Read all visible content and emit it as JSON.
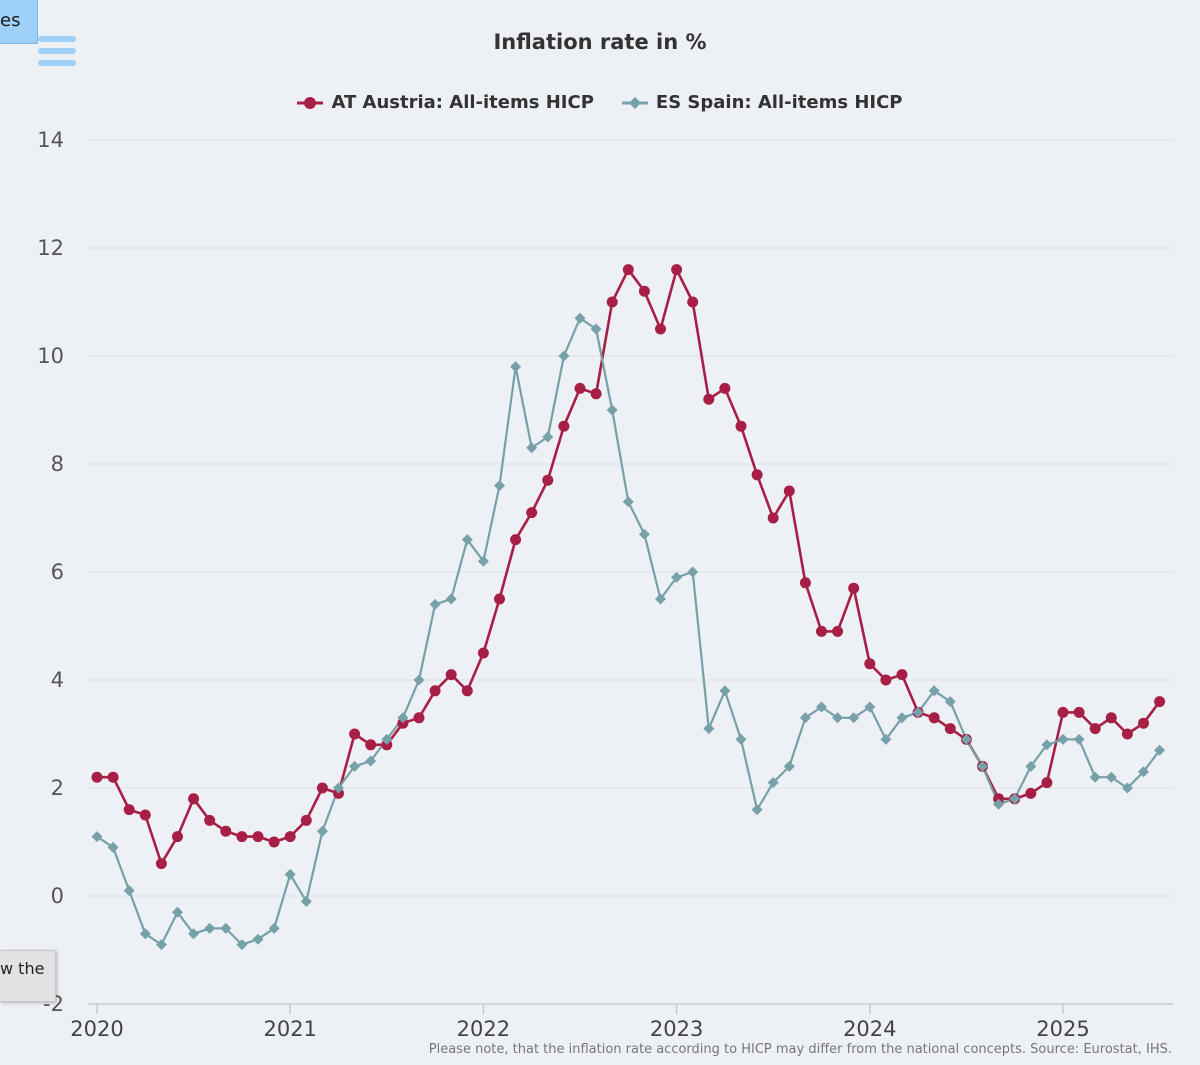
{
  "header": {
    "tab_label": "es",
    "menu_icon": "hamburger-menu-icon"
  },
  "side_tab": {
    "label": "w the"
  },
  "note": "Please note, that the inflation rate according to HICP may differ from the national concepts. Source: Eurostat, IHS.",
  "colors": {
    "austria": "#a81f45",
    "spain": "#76a1a8",
    "background": "#edf0f5",
    "grid": "#dde0e6"
  },
  "chart_data": {
    "type": "line",
    "title": "Inflation rate in %",
    "xlabel": "",
    "ylabel": "",
    "ylim": [
      -2,
      14
    ],
    "yticks": [
      "14",
      "12",
      "10",
      "8",
      "6",
      "4",
      "2",
      "0",
      "-2"
    ],
    "xticks": [
      "2020",
      "2021",
      "2022",
      "2023",
      "2024",
      "2025"
    ],
    "x_start": "2020-01",
    "x_end": "2025-07",
    "legend_position": "top-center",
    "grid": true,
    "series": [
      {
        "name": "AT Austria: All-items HICP",
        "marker": "circle",
        "values": [
          2.2,
          2.2,
          1.6,
          1.5,
          0.6,
          1.1,
          1.8,
          1.4,
          1.2,
          1.1,
          1.1,
          1.0,
          1.1,
          1.4,
          2.0,
          1.9,
          3.0,
          2.8,
          2.8,
          3.2,
          3.3,
          3.8,
          4.1,
          3.8,
          4.5,
          5.5,
          6.6,
          7.1,
          7.7,
          8.7,
          9.4,
          9.3,
          11.0,
          11.6,
          11.2,
          10.5,
          11.6,
          11.0,
          9.2,
          9.4,
          8.7,
          7.8,
          7.0,
          7.5,
          5.8,
          4.9,
          4.9,
          5.7,
          4.3,
          4.0,
          4.1,
          3.4,
          3.3,
          3.1,
          2.9,
          2.4,
          1.8,
          1.8,
          1.9,
          2.1,
          3.4,
          3.4,
          3.1,
          3.3,
          3.0,
          3.2,
          3.6
        ]
      },
      {
        "name": "ES Spain: All-items HICP",
        "marker": "diamond",
        "values": [
          1.1,
          0.9,
          0.1,
          -0.7,
          -0.9,
          -0.3,
          -0.7,
          -0.6,
          -0.6,
          -0.9,
          -0.8,
          -0.6,
          0.4,
          -0.1,
          1.2,
          2.0,
          2.4,
          2.5,
          2.9,
          3.3,
          4.0,
          5.4,
          5.5,
          6.6,
          6.2,
          7.6,
          9.8,
          8.3,
          8.5,
          10.0,
          10.7,
          10.5,
          9.0,
          7.3,
          6.7,
          5.5,
          5.9,
          6.0,
          3.1,
          3.8,
          2.9,
          1.6,
          2.1,
          2.4,
          3.3,
          3.5,
          3.3,
          3.3,
          3.5,
          2.9,
          3.3,
          3.4,
          3.8,
          3.6,
          2.9,
          2.4,
          1.7,
          1.8,
          2.4,
          2.8,
          2.9,
          2.9,
          2.2,
          2.2,
          2.0,
          2.3,
          2.7
        ]
      }
    ]
  }
}
